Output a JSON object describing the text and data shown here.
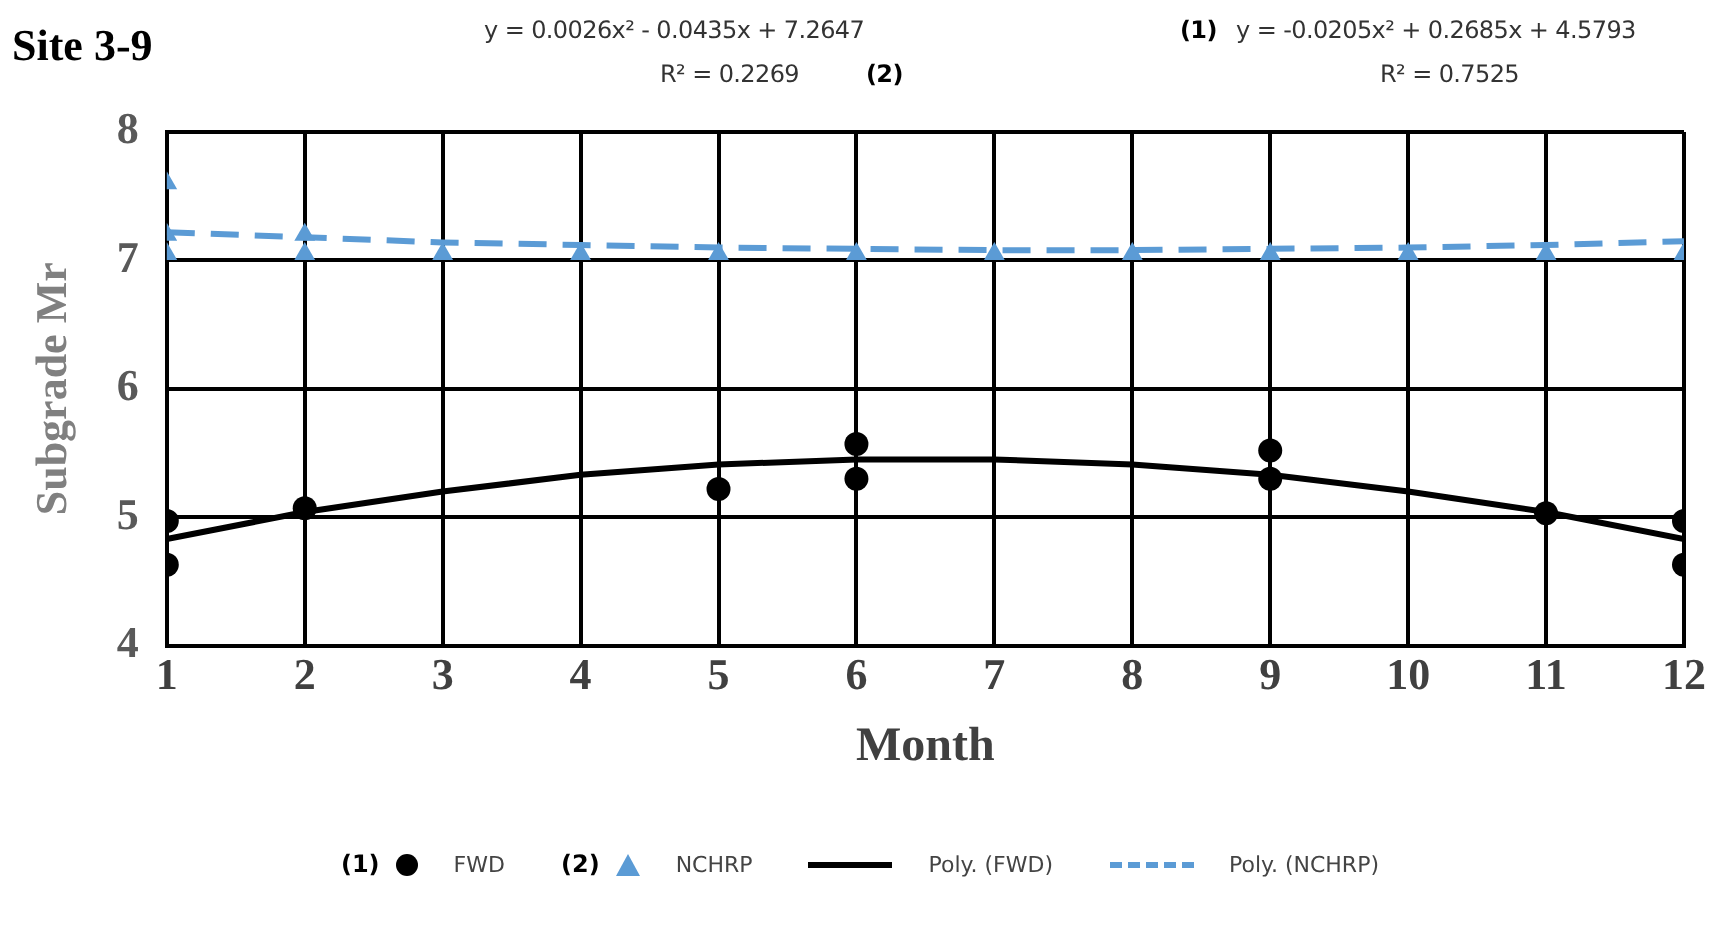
{
  "chart_data": {
    "type": "scatter",
    "title": "Site 3-9",
    "xlabel": "Month",
    "ylabel": "Subgrade Mr",
    "xlim": [
      1,
      12
    ],
    "xticks": [
      1,
      2,
      3,
      4,
      5,
      6,
      7,
      8,
      9,
      10,
      11,
      12
    ],
    "ylim": [
      4,
      8
    ],
    "yticks": [
      4,
      5,
      6,
      7,
      8
    ],
    "grid": true,
    "legend": "bottom",
    "series": [
      {
        "name": "FWD",
        "type": "scatter",
        "color": "#000000",
        "marker": "circle",
        "x": [
          1,
          1,
          2,
          5,
          6,
          6,
          9,
          9,
          11,
          12,
          12
        ],
        "values": [
          4.97,
          4.63,
          5.07,
          5.22,
          5.57,
          5.3,
          5.52,
          5.3,
          5.03,
          4.97,
          4.63
        ]
      },
      {
        "name": "NCHRP",
        "type": "scatter",
        "color": "#5b9bd5",
        "marker": "triangle",
        "x": [
          1,
          1,
          1,
          2,
          2,
          3,
          4,
          5,
          6,
          7,
          8,
          9,
          10,
          11,
          12
        ],
        "values": [
          7.6,
          7.2,
          7.05,
          7.2,
          7.05,
          7.05,
          7.05,
          7.05,
          7.05,
          7.05,
          7.05,
          7.05,
          7.05,
          7.05,
          7.05
        ]
      },
      {
        "name": "Poly. (FWD)",
        "type": "line",
        "color": "#000000",
        "line_style": "solid",
        "x": [
          1,
          2,
          3,
          4,
          5,
          6,
          7,
          8,
          9,
          10,
          11,
          12
        ],
        "values": [
          4.83,
          5.04,
          5.2,
          5.33,
          5.41,
          5.45,
          5.45,
          5.41,
          5.33,
          5.2,
          5.04,
          4.83
        ]
      },
      {
        "name": "Poly. (NCHRP)",
        "type": "line",
        "color": "#5b9bd5",
        "line_style": "dashed",
        "x": [
          1,
          2,
          3,
          4,
          5,
          6,
          7,
          8,
          9,
          10,
          11,
          12
        ],
        "values": [
          7.22,
          7.18,
          7.14,
          7.12,
          7.1,
          7.09,
          7.08,
          7.08,
          7.09,
          7.1,
          7.12,
          7.15
        ]
      }
    ],
    "annotations": [
      "y = 0.0026x² - 0.0435x + 7.2647",
      "R² = 0.2269",
      "(2)",
      "(1)",
      "y = -0.0205x² + 0.2685x + 4.5793",
      "R² = 0.7525",
      "(1)",
      "(2)"
    ]
  }
}
